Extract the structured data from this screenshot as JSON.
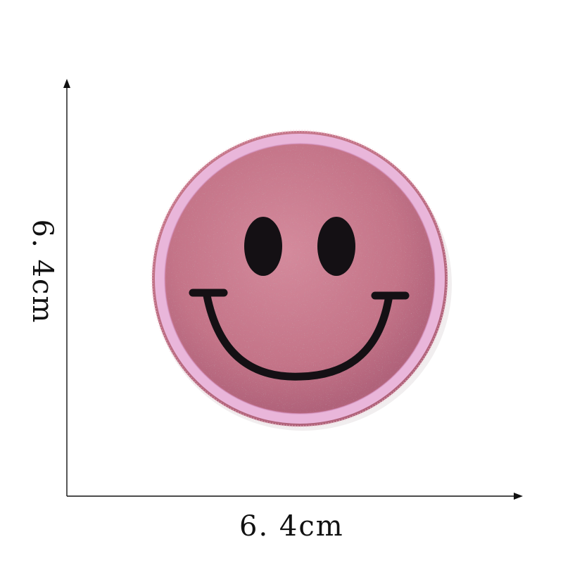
{
  "dimensions": {
    "width_label": "6. 4cm",
    "height_label": "6. 4cm"
  },
  "patch": {
    "subject": "smiley-face",
    "colors": {
      "glitter_base": "#c97a8e",
      "glitter_dark": "#a85a70",
      "glitter_light": "#f3c9d4",
      "border": "#e9b6da",
      "border_edge": "#d596c3",
      "features": "#141014"
    }
  },
  "axes": {
    "color": "#111111"
  }
}
